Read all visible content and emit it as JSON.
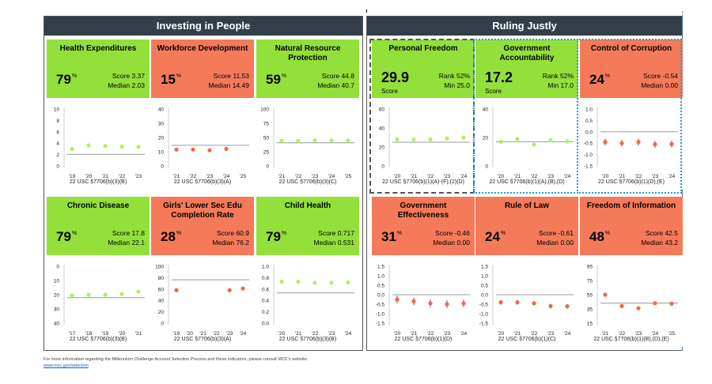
{
  "colors": {
    "pass": "#93e03a",
    "fail": "#f57a5a",
    "header": "#333f48",
    "point_pass": "#b2ef63",
    "point_fail": "#f26745",
    "median_line": "#b4b4b4",
    "err_blue": "#2c8fc4"
  },
  "sections": [
    {
      "title": "Investing in People"
    },
    {
      "title": "Ruling Justly"
    }
  ],
  "chart_data": [
    {
      "type": "scatter",
      "title": "Health Expenditures",
      "status": "pass",
      "percentile": "79",
      "score_label": "Score 3.37",
      "median_label": "Median 2.03",
      "median": 2.03,
      "x": [
        "'19",
        "'20",
        "'21",
        "'22",
        "'23"
      ],
      "values": [
        3.0,
        3.6,
        3.5,
        3.4,
        3.37
      ],
      "ylim": [
        0,
        10
      ],
      "yticks": [
        "0",
        "2",
        "4",
        "6",
        "8",
        "10"
      ],
      "citation": "22 USC §7706(b)(3)(B)"
    },
    {
      "type": "scatter",
      "title": "Workforce Development",
      "status": "fail",
      "percentile": "15",
      "score_label": "Score 11.53",
      "median_label": "Median 14.49",
      "median": 14.49,
      "x": [
        "'21",
        "'22",
        "'23",
        "'24",
        "'25"
      ],
      "values": [
        11.5,
        11.5,
        11.0,
        12.0,
        null
      ],
      "ylim": [
        0,
        40
      ],
      "yticks": [
        "0",
        "10",
        "20",
        "30",
        "40"
      ],
      "citation": "22 USC §7706(b)(3)(A)"
    },
    {
      "type": "scatter",
      "title": "Natural Resource Protection",
      "status": "pass",
      "percentile": "59",
      "score_label": "Score 44.8",
      "median_label": "Median 40.7",
      "median": 40.7,
      "x": [
        "'21",
        "'22",
        "'23",
        "'24",
        "'25"
      ],
      "values": [
        44,
        44,
        45,
        45,
        44.8
      ],
      "ylim": [
        0,
        100
      ],
      "yticks": [
        "0",
        "25",
        "50",
        "75",
        "100"
      ],
      "citation": "22 USC §7706(b)(3)(C)"
    },
    {
      "type": "scatter",
      "title": "Personal Freedom",
      "status": "pass",
      "big_value": "29.9",
      "big_sub": "Score",
      "score_label": "Rank 52%",
      "median_label": "Min 25.0",
      "median": 25.0,
      "x": [
        "'20",
        "'21",
        "'22",
        "'23",
        "'24"
      ],
      "values": [
        28,
        28,
        28,
        29,
        29.9
      ],
      "ylim": [
        0,
        60
      ],
      "yticks": [
        "0",
        "20",
        "40",
        "60"
      ],
      "citation": "22 USC §7706(b)(1)(A)-(F),(2)(D)"
    },
    {
      "type": "scatter",
      "title": "Government Accountability",
      "status": "pass",
      "big_value": "17.2",
      "big_sub": "Score",
      "score_label": "Rank 52%",
      "median_label": "Min 17.0",
      "median": 17.0,
      "x": [
        "'20",
        "'21",
        "'22",
        "'23",
        "'24"
      ],
      "values": [
        17,
        19,
        15,
        18,
        17.2
      ],
      "ylim": [
        0,
        40
      ],
      "yticks": [
        "0",
        "20",
        "40"
      ],
      "citation": "22 USC §7706(b)(1)(A),(B),(D)"
    },
    {
      "type": "scatter",
      "title": "Control of Corruption",
      "status": "fail",
      "percentile": "24",
      "score_label": "Score -0.54",
      "median_label": "Median 0.00",
      "median": 0.0,
      "x": [
        "'20",
        "'21",
        "'22",
        "'23",
        "'24"
      ],
      "values": [
        -0.45,
        -0.5,
        -0.45,
        -0.55,
        -0.54
      ],
      "errors": [
        0.15,
        0.15,
        0.15,
        0.15,
        0.15
      ],
      "ylim": [
        -1.5,
        1.0
      ],
      "yticks": [
        "1.0",
        "0.5",
        "0.0",
        "-0.5",
        "-1.0",
        "-1.5"
      ],
      "citation": "22 USC §7706(b)(1)(D),(E)"
    },
    {
      "type": "scatter",
      "title": "Chronic Disease",
      "status": "pass",
      "percentile": "79",
      "score_label": "Score 17.8",
      "median_label": "Median 22.1",
      "median": 22.1,
      "x": [
        "'17",
        "'18",
        "'19",
        "'20",
        "'21"
      ],
      "values": [
        20.5,
        20,
        20,
        19.5,
        17.8
      ],
      "ylim": [
        0,
        40
      ],
      "yticks": [
        "0",
        "10",
        "20",
        "30",
        "40"
      ],
      "inverted": true,
      "citation": "22 USC §7706(b)(3)(B)"
    },
    {
      "type": "scatter",
      "title": "Girls' Lower Sec Edu Completion Rate",
      "status": "fail",
      "percentile": "28",
      "score_label": "Score 60.9",
      "median_label": "Median 76.2",
      "median": 76.2,
      "x": [
        "'19",
        "'20",
        "'21",
        "'22",
        "'23",
        "'24"
      ],
      "values": [
        58,
        null,
        null,
        null,
        58,
        60.9
      ],
      "ylim": [
        0,
        100
      ],
      "yticks": [
        "0",
        "20",
        "40",
        "60",
        "80",
        "100"
      ],
      "citation": "22 USC §7706(b)(3)(A)"
    },
    {
      "type": "scatter",
      "title": "Child Health",
      "status": "pass",
      "percentile": "79",
      "score_label": "Score 0.717",
      "median_label": "Median 0.531",
      "median": 0.531,
      "x": [
        "'20",
        "'21",
        "'22",
        "'23",
        "'24"
      ],
      "values": [
        0.73,
        0.73,
        0.71,
        0.71,
        0.717
      ],
      "ylim": [
        0,
        1.0
      ],
      "yticks": [
        "0.0",
        "0.2",
        "0.4",
        "0.6",
        "0.8",
        "1.0"
      ],
      "citation": "22 USC §7706(b)(3)(B)"
    },
    {
      "type": "scatter",
      "title": "Government Effectiveness",
      "status": "fail",
      "percentile": "31",
      "score_label": "Score -0.46",
      "median_label": "Median 0.00",
      "median": 0.0,
      "x": [
        "'20",
        "'21",
        "'22",
        "'23",
        "'24"
      ],
      "values": [
        -0.25,
        -0.35,
        -0.45,
        -0.5,
        -0.46
      ],
      "errors": [
        0.2,
        0.2,
        0.2,
        0.2,
        0.2
      ],
      "ylim": [
        -1.5,
        1.5
      ],
      "yticks": [
        "1.5",
        "1.0",
        "0.5",
        "0.0",
        "-0.5",
        "-1.0",
        "-1.5"
      ],
      "citation": "22 USC §7706(b)(1)(D)"
    },
    {
      "type": "scatter",
      "title": "Rule of Law",
      "status": "fail",
      "percentile": "24",
      "score_label": "Score -0.61",
      "median_label": "Median 0.00",
      "median": 0.0,
      "x": [
        "'20",
        "'21",
        "'22",
        "'23",
        "'24"
      ],
      "values": [
        -0.4,
        -0.4,
        -0.45,
        -0.6,
        -0.61
      ],
      "errors": [
        0.12,
        0.12,
        0.12,
        0.12,
        0.12
      ],
      "ylim": [
        -1.5,
        1.5
      ],
      "yticks": [
        "1.5",
        "1.0",
        "0.5",
        "0.0",
        "-0.5",
        "-1.0",
        "-1.5"
      ],
      "citation": "22 USC §7706(b)(1)(C)"
    },
    {
      "type": "scatter",
      "title": "Freedom of Information",
      "status": "fail",
      "percentile": "48",
      "score_label": "Score 42.5",
      "median_label": "Median 43.2",
      "median": 43.2,
      "x": [
        "'21",
        "'22",
        "'23",
        "'24",
        "'25"
      ],
      "values": [
        55,
        39,
        36,
        43,
        42.5
      ],
      "ylim": [
        15,
        95
      ],
      "yticks": [
        "95",
        "75",
        "55",
        "35",
        "15"
      ],
      "citation": "22 USC §7706(b)(1)(B),(D),(E)"
    }
  ],
  "footer": {
    "text": "For more information regarding the Millennium Challenge Account Selection Process and these indicators, please consult MCC's website:",
    "link": "www.mcc.gov/selection"
  }
}
